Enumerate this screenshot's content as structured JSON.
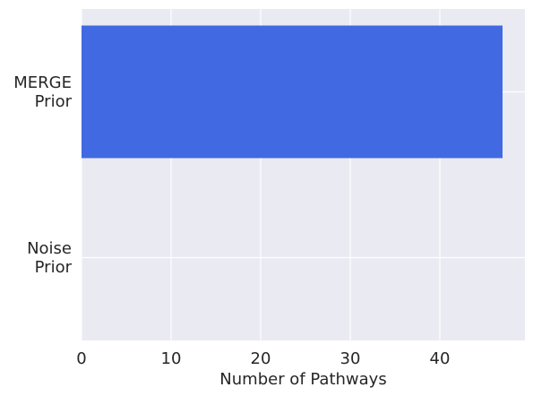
{
  "chart_data": {
    "type": "bar",
    "orientation": "horizontal",
    "categories": [
      "MERGE\nPrior",
      "Noise\nPrior"
    ],
    "values": [
      47,
      0
    ],
    "xlabel": "Number of Pathways",
    "ylabel": "",
    "xlim": [
      0,
      49.5
    ],
    "xticks": [
      0,
      10,
      20,
      30,
      40
    ],
    "grid": true,
    "bar_color": "#4169e1",
    "background_color": "#eaeaf2",
    "grid_color": "#ffffff"
  }
}
